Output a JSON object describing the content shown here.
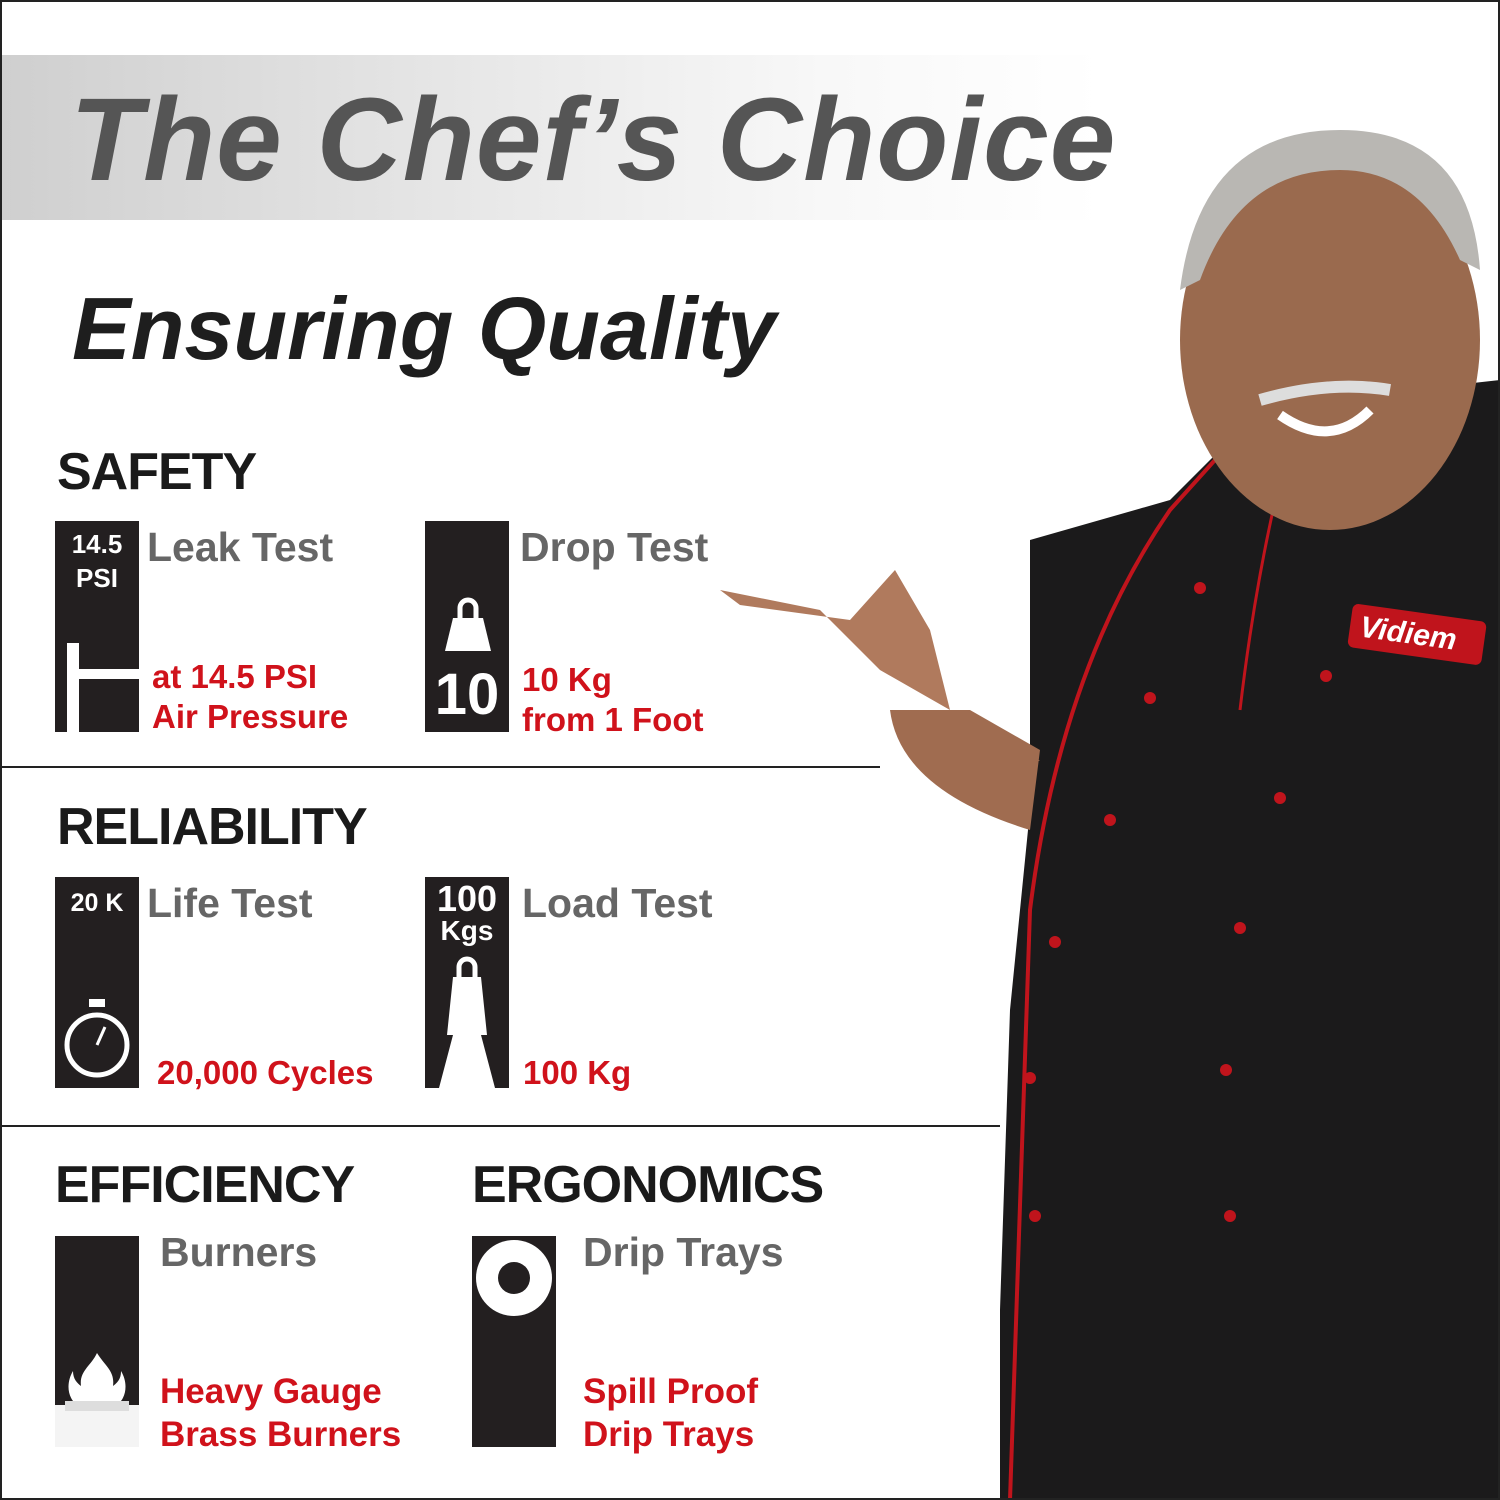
{
  "header": {
    "title": "The Chef’s Choice",
    "subtitle": "Ensuring Quality"
  },
  "colors": {
    "accent_red": "#d0121b",
    "heading_gray": "#666666",
    "icon_box": "#231f20"
  },
  "sections": {
    "safety": {
      "heading": "SAFETY",
      "leak": {
        "icon_text_1": "14.5",
        "icon_text_2": "PSI",
        "icon": "pressure-gauge-icon",
        "title": "Leak Test",
        "detail_1": "at 14.5 PSI",
        "detail_2": "Air Pressure"
      },
      "drop": {
        "icon_text": "10",
        "icon": "weight-icon",
        "title": "Drop Test",
        "detail_1": "10 Kg",
        "detail_2": "from 1 Foot"
      }
    },
    "reliability": {
      "heading": "RELIABILITY",
      "life": {
        "icon_text": "20 K",
        "icon": "stopwatch-icon",
        "title": "Life Test",
        "detail": "20,000 Cycles"
      },
      "load": {
        "icon_text_1": "100",
        "icon_text_2": "Kgs",
        "icon": "load-weight-icon",
        "title": "Load Test",
        "detail": "100 Kg"
      }
    },
    "efficiency": {
      "heading": "EFFICIENCY",
      "burners": {
        "icon": "flame-burner-icon",
        "title": "Burners",
        "detail_1": "Heavy Gauge",
        "detail_2": "Brass Burners"
      }
    },
    "ergonomics": {
      "heading": "ERGONOMICS",
      "drip": {
        "icon": "drip-tray-icon",
        "title": "Drip Trays",
        "detail_1": "Spill Proof",
        "detail_2": "Drip Trays"
      }
    }
  },
  "chef": {
    "badge_logo": "Vidiem"
  }
}
